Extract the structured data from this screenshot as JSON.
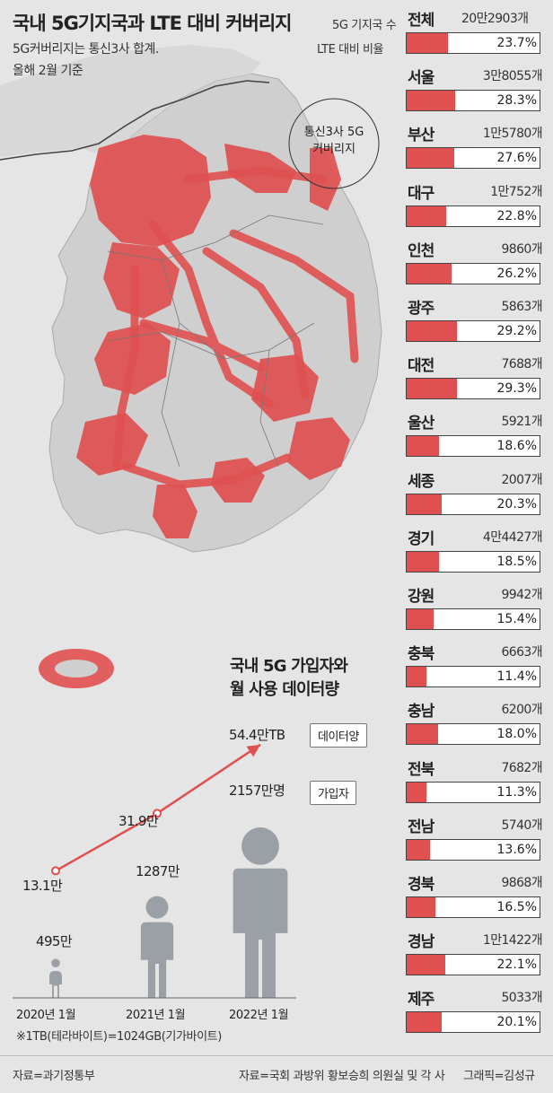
{
  "title": "국내 5G기지국과 LTE 대비 커버리지",
  "subnotes": [
    "5G커버리지는 통신3사 합계.",
    "올해 2월 기준"
  ],
  "map_label": [
    "통신3사 5G",
    "커버리지"
  ],
  "colors": {
    "accent": "#e05050",
    "land": "#cfcfcf",
    "sea": "#e5e5e5",
    "figure": "#9aa0a6"
  },
  "legend": {
    "count_label": "5G 기지국 수",
    "ratio_label": "LTE 대비 비율"
  },
  "chart_data": [
    {
      "type": "bar",
      "categories": [
        "전체",
        "서울",
        "부산",
        "대구",
        "인천",
        "광주",
        "대전",
        "울산",
        "세종",
        "경기",
        "강원",
        "충북",
        "충남",
        "전북",
        "전남",
        "경북",
        "경남",
        "제주"
      ],
      "counts": [
        "20만2903개",
        "3만8055개",
        "1만5780개",
        "1만752개",
        "9860개",
        "5863개",
        "7688개",
        "5921개",
        "2007개",
        "4만4427개",
        "9942개",
        "6663개",
        "6200개",
        "7682개",
        "5740개",
        "9868개",
        "1만1422개",
        "5033개"
      ],
      "values": [
        23.7,
        28.3,
        27.6,
        22.8,
        26.2,
        29.2,
        29.3,
        18.6,
        20.3,
        18.5,
        15.4,
        11.4,
        18.0,
        11.3,
        13.6,
        16.5,
        22.1,
        20.1
      ],
      "value_labels": [
        "23.7%",
        "28.3%",
        "27.6%",
        "22.8%",
        "26.2%",
        "29.2%",
        "29.3%",
        "18.6%",
        "20.3%",
        "18.5%",
        "15.4%",
        "11.4%",
        "18.0%",
        "11.3%",
        "13.6%",
        "16.5%",
        "22.1%",
        "20.1%"
      ],
      "ylim": [
        0,
        100
      ]
    },
    {
      "type": "line",
      "title": [
        "국내 5G 가입자와",
        "월 사용 데이터량"
      ],
      "x": [
        "2020년 1월",
        "2021년 1월",
        "2022년 1월"
      ],
      "series": [
        {
          "name": "데이터양",
          "values": [
            13.1,
            31.9,
            54.4
          ],
          "labels": [
            "13.1만",
            "31.9만",
            "54.4만TB"
          ]
        },
        {
          "name": "가입자",
          "values": [
            495,
            1287,
            2157
          ],
          "labels": [
            "495만",
            "1287만",
            "2157만명"
          ]
        }
      ]
    }
  ],
  "footnote": "※1TB(테라바이트)=1024GB(기가바이트)",
  "source_left": "자료=과기정통부",
  "source_right": "자료=국회 과방위 황보승희 의원실 및 각 사",
  "credit": "그래픽=김성규"
}
